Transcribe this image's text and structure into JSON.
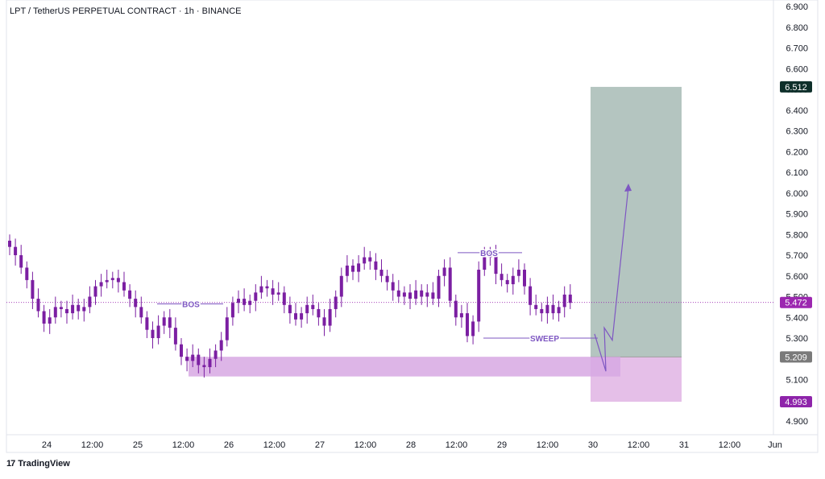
{
  "chart_data": {
    "type": "candlestick",
    "title": "LPT / TetherUS PERPETUAL CONTRACT · 1h · BINANCE",
    "xlabel": "",
    "ylabel": "",
    "ylim": [
      4.86,
      6.92
    ],
    "grid": false,
    "y_ticks": [
      "6.900",
      "6.800",
      "6.700",
      "6.600",
      "6.500",
      "6.400",
      "6.300",
      "6.200",
      "6.100",
      "6.000",
      "5.900",
      "5.800",
      "5.700",
      "5.600",
      "5.500",
      "5.400",
      "5.300",
      "5.200",
      "5.100",
      "5.000",
      "4.900"
    ],
    "x_ticks": [
      "24",
      "12:00",
      "25",
      "12:00",
      "26",
      "12:00",
      "27",
      "12:00",
      "28",
      "12:00",
      "29",
      "12:00",
      "30",
      "12:00",
      "31",
      "12:00",
      "Jun"
    ],
    "price_close": [
      5.74,
      5.7,
      5.64,
      5.58,
      5.49,
      5.43,
      5.37,
      5.4,
      5.45,
      5.44,
      5.42,
      5.46,
      5.43,
      5.45,
      5.5,
      5.55,
      5.57,
      5.58,
      5.59,
      5.57,
      5.53,
      5.49,
      5.45,
      5.4,
      5.34,
      5.3,
      5.36,
      5.4,
      5.35,
      5.27,
      5.21,
      5.19,
      5.22,
      5.17,
      5.16,
      5.2,
      5.24,
      5.29,
      5.4,
      5.47,
      5.49,
      5.46,
      5.48,
      5.52,
      5.55,
      5.54,
      5.51,
      5.52,
      5.46,
      5.42,
      5.39,
      5.42,
      5.46,
      5.44,
      5.4,
      5.36,
      5.44,
      5.5,
      5.6,
      5.65,
      5.62,
      5.66,
      5.69,
      5.67,
      5.63,
      5.6,
      5.57,
      5.53,
      5.5,
      5.52,
      5.49,
      5.53,
      5.5,
      5.52,
      5.49,
      5.6,
      5.64,
      5.48,
      5.4,
      5.42,
      5.31,
      5.38,
      5.63,
      5.69,
      5.71,
      5.61,
      5.58,
      5.56,
      5.6,
      5.63,
      5.55,
      5.46,
      5.44,
      5.42,
      5.46,
      5.42,
      5.45,
      5.51,
      5.47
    ],
    "current_price": "5.472",
    "current_price_value": 5.472,
    "annotations": [
      {
        "text": "BOS",
        "price": 5.465,
        "near_candle": 45
      },
      {
        "text": "BOS",
        "price": 5.712,
        "near_candle": 83
      },
      {
        "text": "SWEEP",
        "price": 5.3,
        "near_candle": 84
      }
    ],
    "position": {
      "target_label": "6.512",
      "target": 6.512,
      "entry_label": "5.209",
      "entry": 5.209,
      "stop_label": "4.993",
      "stop": 4.993,
      "profit_color": "#b4c5c0",
      "loss_color": "#e5bfe8"
    },
    "demand_zone": {
      "top": 5.21,
      "bottom": 5.115,
      "color": "#d7a8e3"
    },
    "projection_path": [
      5.35,
      5.28,
      5.33,
      6.03
    ],
    "colors": {
      "candle": "#7b1fa2",
      "annotation": "#7e57c2",
      "target_badge": "#0e2f2a",
      "entry_badge": "#7a7a7a",
      "stop_badge": "#8e24aa",
      "price_badge": "#9c27b0"
    }
  },
  "brand": {
    "logo": "17",
    "name": "TradingView"
  }
}
